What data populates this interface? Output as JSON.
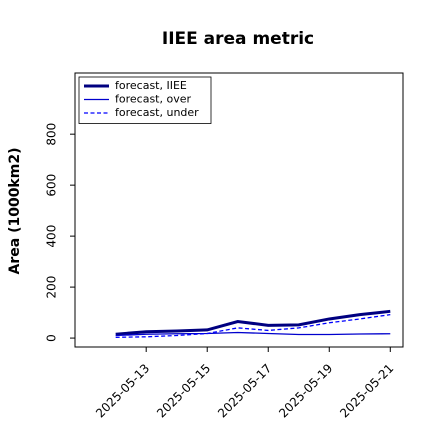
{
  "chart_data": {
    "type": "line",
    "title": "IIEE area metric",
    "ylabel": "Area (1000km2)",
    "x": [
      "2025-05-12",
      "2025-05-13",
      "2025-05-14",
      "2025-05-15",
      "2025-05-16",
      "2025-05-17",
      "2025-05-18",
      "2025-05-19",
      "2025-05-20",
      "2025-05-21"
    ],
    "series": [
      {
        "name": "forecast, IIEE",
        "color": "#000080",
        "width": 3,
        "style": "solid",
        "values": [
          15,
          25,
          28,
          32,
          65,
          50,
          52,
          75,
          92,
          105
        ]
      },
      {
        "name": "forecast, over",
        "color": "#0000cd",
        "width": 1.3,
        "style": "solid",
        "values": [
          10,
          15,
          17,
          18,
          22,
          18,
          14,
          14,
          16,
          17
        ]
      },
      {
        "name": "forecast, under",
        "color": "#0000ff",
        "width": 1.3,
        "style": "dashed",
        "values": [
          3,
          5,
          10,
          18,
          40,
          30,
          40,
          60,
          75,
          92
        ]
      }
    ],
    "xlim": [
      "2025-05-10T16:00:00Z",
      "2025-05-21T10:00:00Z"
    ],
    "xticks": [
      "2025-05-13",
      "2025-05-15",
      "2025-05-17",
      "2025-05-19",
      "2025-05-21"
    ],
    "xtick_colors": [
      "#228b22",
      "#000000",
      "#000000",
      "#000000",
      "#000000"
    ],
    "ylim": [
      -35,
      1040
    ],
    "yticks": [
      0,
      200,
      400,
      600,
      800
    ],
    "legend": "upper left",
    "grid": false
  }
}
